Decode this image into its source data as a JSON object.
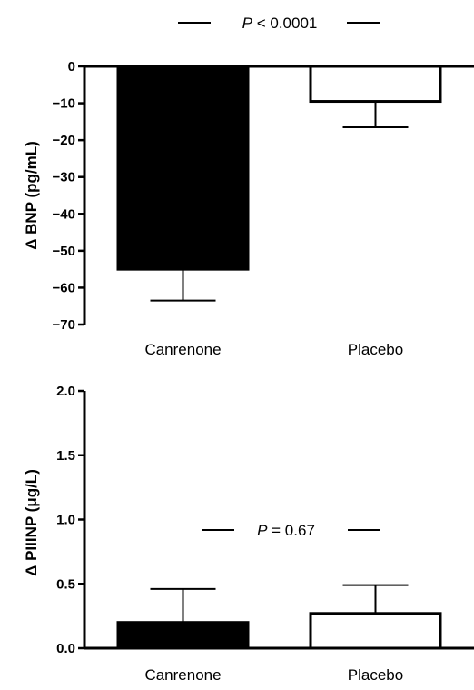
{
  "chart_data": [
    {
      "type": "bar",
      "categories": [
        "Canrenone",
        "Placebo"
      ],
      "values": [
        -55,
        -9.5
      ],
      "error_bars": [
        8.5,
        7
      ],
      "bar_colors": [
        "#000000",
        "#ffffff"
      ],
      "ylabel": "Δ BNP (pg/mL)",
      "ylim": [
        -70,
        0
      ],
      "yticks": [
        0,
        -10,
        -20,
        -30,
        -40,
        -50,
        -60,
        -70
      ],
      "ytick_labels": [
        "0",
        "−10",
        "−20",
        "−30",
        "−40",
        "−50",
        "−60",
        "−70"
      ],
      "annotation": {
        "prefix": "P",
        "text": " < 0.0001"
      }
    },
    {
      "type": "bar",
      "categories": [
        "Canrenone",
        "Placebo"
      ],
      "values": [
        0.2,
        0.27
      ],
      "error_bars": [
        0.26,
        0.22
      ],
      "bar_colors": [
        "#000000",
        "#ffffff"
      ],
      "ylabel": "Δ PIIINP (μg/L)",
      "ylim": [
        0,
        2.0
      ],
      "yticks": [
        0,
        0.5,
        1.0,
        1.5,
        2.0
      ],
      "ytick_labels": [
        "0.0",
        "0.5",
        "1.0",
        "1.5",
        "2.0"
      ],
      "annotation": {
        "prefix": "P",
        "text": " = 0.67"
      }
    }
  ]
}
